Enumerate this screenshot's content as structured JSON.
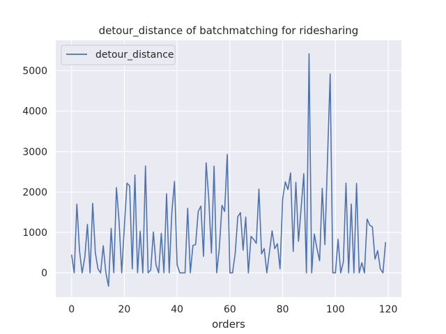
{
  "chart_data": {
    "type": "line",
    "title": "detour_distance of batchmatching for ridesharing",
    "xlabel": "orders",
    "ylabel": "",
    "xlim": [
      -6,
      125
    ],
    "ylim": [
      -600,
      5750
    ],
    "xticks": [
      0,
      20,
      40,
      60,
      80,
      100,
      120
    ],
    "yticks": [
      0,
      1000,
      2000,
      3000,
      4000,
      5000
    ],
    "grid": true,
    "legend": "top-left",
    "series": [
      {
        "name": "detour_distance",
        "color": "#4c72b0",
        "x": [
          0,
          1,
          2,
          3,
          4,
          5,
          6,
          7,
          8,
          9,
          10,
          11,
          12,
          13,
          14,
          15,
          16,
          17,
          18,
          19,
          20,
          21,
          22,
          23,
          24,
          25,
          26,
          27,
          28,
          29,
          30,
          31,
          32,
          33,
          34,
          35,
          36,
          37,
          38,
          39,
          40,
          41,
          42,
          43,
          44,
          45,
          46,
          47,
          48,
          49,
          50,
          51,
          52,
          53,
          54,
          55,
          56,
          57,
          58,
          59,
          60,
          61,
          62,
          63,
          64,
          65,
          66,
          67,
          68,
          69,
          70,
          71,
          72,
          73,
          74,
          75,
          76,
          77,
          78,
          79,
          80,
          81,
          82,
          83,
          84,
          85,
          86,
          87,
          88,
          89,
          90,
          91,
          92,
          93,
          94,
          95,
          96,
          97,
          98,
          99,
          100,
          101,
          102,
          103,
          104,
          105,
          106,
          107,
          108,
          109,
          110,
          111,
          112,
          113,
          114,
          115,
          116,
          117,
          118,
          119
        ],
        "values": [
          450,
          0,
          1700,
          550,
          0,
          380,
          1200,
          0,
          1720,
          500,
          100,
          0,
          670,
          0,
          -330,
          1100,
          0,
          2110,
          1270,
          0,
          1150,
          2220,
          2150,
          100,
          2420,
          0,
          1030,
          0,
          2640,
          0,
          70,
          1010,
          200,
          0,
          980,
          0,
          1960,
          0,
          1500,
          2260,
          200,
          0,
          0,
          0,
          1600,
          0,
          680,
          700,
          1520,
          1650,
          410,
          2720,
          1820,
          490,
          2640,
          0,
          620,
          1670,
          1520,
          2930,
          0,
          0,
          480,
          1390,
          1490,
          560,
          1380,
          0,
          900,
          830,
          730,
          2070,
          470,
          600,
          0,
          520,
          1040,
          600,
          720,
          100,
          1830,
          2250,
          2060,
          2470,
          530,
          2240,
          780,
          1600,
          2450,
          0,
          5420,
          0,
          960,
          600,
          300,
          2090,
          700,
          2820,
          4920,
          0,
          0,
          830,
          0,
          270,
          2220,
          0,
          1700,
          0,
          2210,
          0,
          250,
          0,
          1330,
          1180,
          1140,
          340,
          550,
          100,
          0,
          760
        ]
      }
    ]
  }
}
